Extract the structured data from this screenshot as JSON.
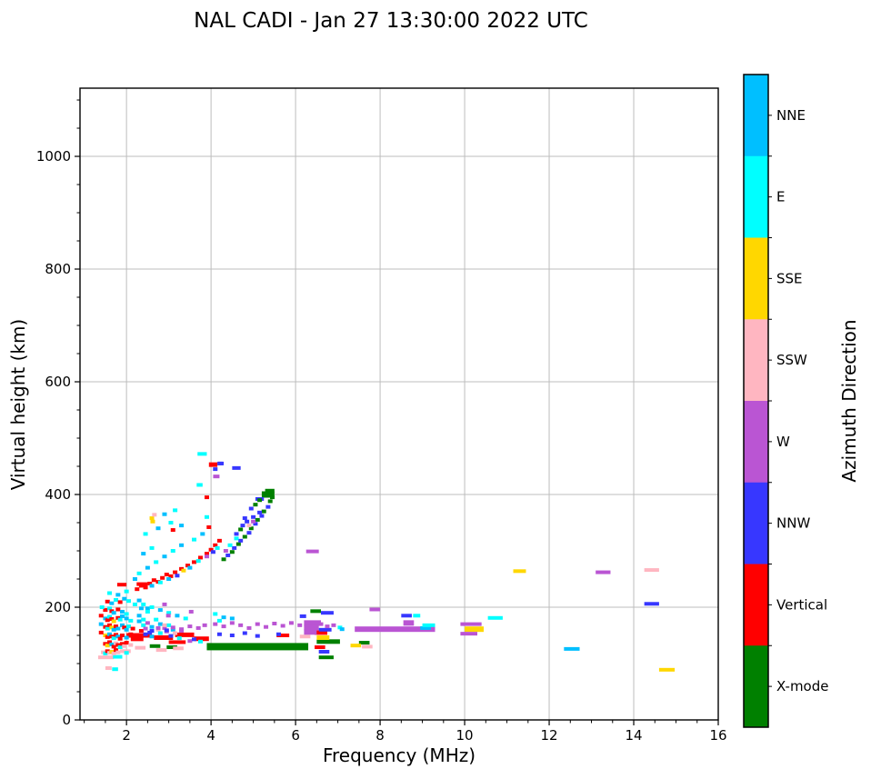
{
  "title": "NAL CADI - Jan 27 13:30:00 2022 UTC",
  "chart_data": {
    "type": "scatter",
    "title": "NAL CADI - Jan 27 13:30:00 2022 UTC",
    "xlabel": "Frequency (MHz)",
    "ylabel": "Virtual height (km)",
    "xlim": [
      0.9,
      16
    ],
    "ylim": [
      0,
      1121
    ],
    "x_major_ticks": [
      2,
      4,
      6,
      8,
      10,
      12,
      14,
      16
    ],
    "x_minor_step": 0.5,
    "y_major_ticks": [
      0,
      200,
      400,
      600,
      800,
      1000
    ],
    "y_minor_step": 50,
    "grid": true,
    "colorbar_label": "Azimuth Direction",
    "legend": [
      {
        "label": "NNE",
        "color": "#00BFFF"
      },
      {
        "label": "E",
        "color": "#00FFFF"
      },
      {
        "label": "SSE",
        "color": "#FFD700"
      },
      {
        "label": "SSW",
        "color": "#FFB6C1"
      },
      {
        "label": "W",
        "color": "#BA55D3"
      },
      {
        "label": "NNW",
        "color": "#3737FF"
      },
      {
        "label": "Vertical",
        "color": "#FF0000"
      },
      {
        "label": "X-mode",
        "color": "#008000"
      }
    ],
    "color_codes": {
      "NNE": "#00BFFF",
      "E": "#00FFFF",
      "SSE": "#FFD700",
      "SSW": "#FFB6C1",
      "W": "#BA55D3",
      "NNW": "#3737FF",
      "V": "#FF0000",
      "X": "#008000"
    },
    "points": [
      [
        1.45,
        120,
        "SSW"
      ],
      [
        1.5,
        118,
        "E"
      ],
      [
        1.55,
        122,
        "V"
      ],
      [
        1.6,
        119,
        "SSW"
      ],
      [
        1.65,
        121,
        "SSE"
      ],
      [
        1.7,
        118,
        "SSW"
      ],
      [
        1.75,
        124,
        "V"
      ],
      [
        1.8,
        120,
        "SSW"
      ],
      [
        1.9,
        122,
        "SSW"
      ],
      [
        2.0,
        119,
        "E"
      ],
      [
        1.5,
        135,
        "V"
      ],
      [
        1.55,
        132,
        "SSE"
      ],
      [
        1.6,
        138,
        "V"
      ],
      [
        1.65,
        134,
        "NNE"
      ],
      [
        1.7,
        130,
        "V"
      ],
      [
        1.75,
        136,
        "SSW"
      ],
      [
        1.8,
        133,
        "V"
      ],
      [
        1.85,
        129,
        "E"
      ],
      [
        1.9,
        135,
        "V"
      ],
      [
        1.95,
        131,
        "SSW"
      ],
      [
        2.0,
        137,
        "V"
      ],
      [
        2.1,
        133,
        "SSW"
      ],
      [
        1.5,
        150,
        "SSE"
      ],
      [
        1.55,
        147,
        "V"
      ],
      [
        1.6,
        152,
        "NNE"
      ],
      [
        1.65,
        148,
        "V"
      ],
      [
        1.7,
        145,
        "E"
      ],
      [
        1.75,
        151,
        "V"
      ],
      [
        1.8,
        148,
        "NNE"
      ],
      [
        1.85,
        144,
        "V"
      ],
      [
        1.9,
        150,
        "V"
      ],
      [
        2.0,
        146,
        "NNE"
      ],
      [
        2.1,
        152,
        "V"
      ],
      [
        2.2,
        148,
        "V"
      ],
      [
        1.5,
        165,
        "V"
      ],
      [
        1.55,
        162,
        "E"
      ],
      [
        1.6,
        168,
        "V"
      ],
      [
        1.65,
        164,
        "SSE"
      ],
      [
        1.7,
        160,
        "NNE"
      ],
      [
        1.75,
        166,
        "V"
      ],
      [
        1.8,
        162,
        "NNE"
      ],
      [
        1.9,
        168,
        "NNE"
      ],
      [
        1.95,
        164,
        "V"
      ],
      [
        2.0,
        160,
        "NNE"
      ],
      [
        2.05,
        166,
        "E"
      ],
      [
        2.15,
        162,
        "V"
      ],
      [
        1.5,
        180,
        "NNE"
      ],
      [
        1.55,
        177,
        "V"
      ],
      [
        1.6,
        183,
        "E"
      ],
      [
        1.65,
        179,
        "V"
      ],
      [
        1.7,
        175,
        "SSE"
      ],
      [
        1.8,
        181,
        "V"
      ],
      [
        1.85,
        178,
        "E"
      ],
      [
        1.9,
        184,
        "NNE"
      ],
      [
        2.0,
        180,
        "NNE"
      ],
      [
        2.1,
        176,
        "E"
      ],
      [
        1.5,
        195,
        "V"
      ],
      [
        1.6,
        198,
        "E"
      ],
      [
        1.65,
        193,
        "V"
      ],
      [
        1.7,
        190,
        "NNE"
      ],
      [
        1.8,
        196,
        "V"
      ],
      [
        1.9,
        192,
        "NNE"
      ],
      [
        2.0,
        188,
        "E"
      ],
      [
        1.55,
        210,
        "V"
      ],
      [
        1.65,
        207,
        "NNE"
      ],
      [
        1.75,
        213,
        "E"
      ],
      [
        1.85,
        209,
        "V"
      ],
      [
        1.95,
        215,
        "NNE"
      ],
      [
        2.05,
        211,
        "E"
      ],
      [
        1.6,
        225,
        "E"
      ],
      [
        1.8,
        222,
        "NNE"
      ],
      [
        2.0,
        228,
        "E"
      ],
      [
        2.3,
        212,
        "NNE"
      ],
      [
        2.4,
        205,
        "E"
      ],
      [
        2.5,
        198,
        "NNE"
      ],
      [
        1.4,
        155,
        "V"
      ],
      [
        1.4,
        170,
        "NNE"
      ],
      [
        1.4,
        185,
        "V"
      ],
      [
        1.42,
        200,
        "E"
      ],
      [
        2.3,
        175,
        "NNE"
      ],
      [
        2.4,
        168,
        "E"
      ],
      [
        2.5,
        172,
        "W"
      ],
      [
        2.6,
        165,
        "NNE"
      ],
      [
        2.7,
        178,
        "E"
      ],
      [
        2.8,
        170,
        "NNE"
      ],
      [
        2.9,
        163,
        "W"
      ],
      [
        3.0,
        168,
        "E"
      ],
      [
        3.1,
        160,
        "NNE"
      ],
      [
        2.35,
        158,
        "V"
      ],
      [
        2.55,
        155,
        "NNW"
      ],
      [
        2.75,
        160,
        "SSW"
      ],
      [
        2.95,
        157,
        "W"
      ],
      [
        3.15,
        154,
        "SSW"
      ],
      [
        2.2,
        205,
        "E"
      ],
      [
        2.35,
        198,
        "NNE"
      ],
      [
        2.5,
        192,
        "E"
      ],
      [
        2.3,
        185,
        "NNE"
      ],
      [
        2.6,
        200,
        "E"
      ],
      [
        2.8,
        195,
        "NNE"
      ],
      [
        3.0,
        190,
        "E"
      ],
      [
        2.4,
        178,
        "E"
      ],
      [
        3.2,
        185,
        "NNE"
      ],
      [
        3.4,
        180,
        "E"
      ],
      [
        2.9,
        205,
        "W"
      ],
      [
        2.99,
        185,
        "W"
      ],
      [
        3.53,
        192,
        "W"
      ],
      [
        2.45,
        162,
        "W"
      ],
      [
        2.6,
        158,
        "NNW"
      ],
      [
        2.75,
        163,
        "W"
      ],
      [
        2.95,
        159,
        "NNW"
      ],
      [
        3.1,
        164,
        "W"
      ],
      [
        3.3,
        161,
        "W"
      ],
      [
        3.5,
        166,
        "W"
      ],
      [
        3.7,
        163,
        "W"
      ],
      [
        3.85,
        168,
        "W"
      ],
      [
        4.1,
        188,
        "E"
      ],
      [
        4.3,
        182,
        "NNE"
      ],
      [
        4.2,
        176,
        "E"
      ],
      [
        4.5,
        180,
        "NNE"
      ],
      [
        2.45,
        152,
        "NNW"
      ],
      [
        2.6,
        148,
        "NNE"
      ],
      [
        2.8,
        154,
        "E"
      ],
      [
        3.05,
        149,
        "NNW"
      ],
      [
        3.25,
        145,
        "E"
      ],
      [
        3.5,
        140,
        "W"
      ],
      [
        3.3,
        158,
        "W"
      ],
      [
        2.9,
        168,
        "SSW"
      ],
      [
        3.6,
        143,
        "NNW"
      ],
      [
        3.75,
        139,
        "E"
      ],
      [
        2.25,
        232,
        "V"
      ],
      [
        2.35,
        238,
        "V"
      ],
      [
        2.45,
        235,
        "V"
      ],
      [
        2.55,
        242,
        "V"
      ],
      [
        2.65,
        248,
        "V"
      ],
      [
        2.75,
        245,
        "V"
      ],
      [
        2.85,
        252,
        "V"
      ],
      [
        2.95,
        258,
        "V"
      ],
      [
        3.05,
        255,
        "V"
      ],
      [
        3.15,
        262,
        "V"
      ],
      [
        3.3,
        268,
        "V"
      ],
      [
        3.45,
        274,
        "V"
      ],
      [
        3.6,
        280,
        "V"
      ],
      [
        3.75,
        288,
        "V"
      ],
      [
        3.9,
        295,
        "V"
      ],
      [
        4.0,
        302,
        "V"
      ],
      [
        4.1,
        310,
        "V"
      ],
      [
        4.2,
        318,
        "V"
      ],
      [
        2.6,
        238,
        "NNE"
      ],
      [
        2.8,
        244,
        "E"
      ],
      [
        3.0,
        250,
        "NNE"
      ],
      [
        3.2,
        256,
        "NNW"
      ],
      [
        3.5,
        270,
        "NNE"
      ],
      [
        3.7,
        282,
        "E"
      ],
      [
        3.9,
        290,
        "W"
      ],
      [
        4.05,
        298,
        "NNW"
      ],
      [
        4.15,
        305,
        "E"
      ],
      [
        3.35,
        265,
        "SSE"
      ],
      [
        3.1,
        337,
        "V"
      ],
      [
        3.95,
        342,
        "V"
      ],
      [
        2.3,
        260,
        "E"
      ],
      [
        2.5,
        270,
        "NNE"
      ],
      [
        2.7,
        280,
        "E"
      ],
      [
        2.9,
        290,
        "NNE"
      ],
      [
        3.1,
        300,
        "E"
      ],
      [
        3.3,
        310,
        "NNE"
      ],
      [
        2.4,
        295,
        "NNE"
      ],
      [
        2.6,
        305,
        "E"
      ],
      [
        2.2,
        250,
        "NNE"
      ],
      [
        3.6,
        320,
        "E"
      ],
      [
        3.8,
        330,
        "NNE"
      ],
      [
        2.45,
        330,
        "E"
      ],
      [
        2.75,
        340,
        "NNE"
      ],
      [
        3.05,
        350,
        "E"
      ],
      [
        2.6,
        358,
        "SSE"
      ],
      [
        2.62,
        352,
        "SSE"
      ],
      [
        2.66,
        364,
        "SSW"
      ],
      [
        3.9,
        360,
        "E"
      ],
      [
        3.3,
        345,
        "NNE"
      ],
      [
        2.9,
        365,
        "NNE"
      ],
      [
        3.15,
        372,
        "E"
      ],
      [
        4.3,
        285,
        "X"
      ],
      [
        4.4,
        292,
        "NNW"
      ],
      [
        4.5,
        298,
        "X"
      ],
      [
        4.55,
        305,
        "NNW"
      ],
      [
        4.65,
        312,
        "X"
      ],
      [
        4.7,
        318,
        "NNW"
      ],
      [
        4.8,
        325,
        "X"
      ],
      [
        4.9,
        332,
        "NNW"
      ],
      [
        4.95,
        340,
        "X"
      ],
      [
        5.05,
        348,
        "NNW"
      ],
      [
        5.1,
        355,
        "X"
      ],
      [
        5.2,
        362,
        "NNW"
      ],
      [
        5.25,
        370,
        "X"
      ],
      [
        5.35,
        378,
        "NNW"
      ],
      [
        5.45,
        395,
        "X"
      ],
      [
        5.4,
        388,
        "X"
      ],
      [
        4.6,
        330,
        "NNW"
      ],
      [
        4.75,
        345,
        "NNW"
      ],
      [
        4.85,
        352,
        "NNW"
      ],
      [
        5.0,
        360,
        "NNW"
      ],
      [
        5.15,
        368,
        "NNW"
      ],
      [
        4.45,
        310,
        "E"
      ],
      [
        4.6,
        322,
        "E"
      ],
      [
        4.9,
        345,
        "SSW"
      ],
      [
        5.0,
        352,
        "W"
      ],
      [
        4.35,
        300,
        "W"
      ],
      [
        4.7,
        338,
        "X"
      ],
      [
        4.8,
        358,
        "NNW"
      ],
      [
        4.95,
        375,
        "NNW"
      ],
      [
        5.05,
        382,
        "X"
      ],
      [
        5.15,
        390,
        "X"
      ],
      [
        4.22,
        455,
        "NNW"
      ],
      [
        4.1,
        445,
        "NNW"
      ],
      [
        3.9,
        395,
        "V"
      ],
      [
        4.1,
        170,
        "W"
      ],
      [
        4.3,
        166,
        "W"
      ],
      [
        4.5,
        172,
        "W"
      ],
      [
        4.7,
        168,
        "W"
      ],
      [
        4.9,
        163,
        "W"
      ],
      [
        5.1,
        170,
        "W"
      ],
      [
        5.3,
        165,
        "W"
      ],
      [
        5.5,
        171,
        "W"
      ],
      [
        5.7,
        167,
        "W"
      ],
      [
        5.9,
        172,
        "W"
      ],
      [
        6.1,
        168,
        "W"
      ],
      [
        6.6,
        170,
        "W"
      ],
      [
        6.75,
        166,
        "W"
      ],
      [
        6.9,
        168,
        "W"
      ],
      [
        4.2,
        152,
        "NNW"
      ],
      [
        4.5,
        150,
        "NNW"
      ],
      [
        4.8,
        154,
        "NNW"
      ],
      [
        5.1,
        149,
        "NNW"
      ],
      [
        5.6,
        152,
        "NNW"
      ],
      [
        7.05,
        164,
        "E"
      ],
      [
        7.1,
        161,
        "NNE"
      ]
    ],
    "segments": [
      [
        2.0,
        2.6,
        150,
        "V",
        5
      ],
      [
        2.65,
        3.1,
        146,
        "V",
        5
      ],
      [
        3.15,
        3.6,
        151,
        "V",
        5
      ],
      [
        3.6,
        3.95,
        144,
        "V",
        5
      ],
      [
        2.1,
        2.4,
        143,
        "V"
      ],
      [
        3.0,
        3.4,
        138,
        "V"
      ],
      [
        4.0,
        4.5,
        131,
        "V",
        5
      ],
      [
        5.55,
        5.85,
        150,
        "V"
      ],
      [
        6.45,
        6.75,
        155,
        "V",
        5
      ],
      [
        6.45,
        6.7,
        129,
        "V"
      ],
      [
        1.78,
        2.0,
        240,
        "V"
      ],
      [
        2.24,
        2.5,
        241,
        "V"
      ],
      [
        3.95,
        4.15,
        453,
        "V",
        5
      ],
      [
        2.55,
        2.8,
        131,
        "X"
      ],
      [
        2.95,
        3.2,
        129,
        "X"
      ],
      [
        3.9,
        6.3,
        130,
        "X",
        8
      ],
      [
        6.5,
        7.05,
        139,
        "X",
        5
      ],
      [
        7.5,
        7.75,
        137,
        "X"
      ],
      [
        6.35,
        6.6,
        193,
        "X"
      ],
      [
        6.55,
        6.9,
        111,
        "X"
      ],
      [
        5.2,
        5.5,
        400,
        "X",
        7
      ],
      [
        5.28,
        5.5,
        406,
        "X",
        5
      ],
      [
        2.2,
        2.45,
        128,
        "SSW"
      ],
      [
        2.7,
        2.95,
        124,
        "SSW"
      ],
      [
        3.1,
        3.35,
        127,
        "SSW"
      ],
      [
        1.9,
        2.1,
        122,
        "SSW"
      ],
      [
        1.33,
        1.7,
        111,
        "SSW"
      ],
      [
        1.68,
        1.9,
        112,
        "E"
      ],
      [
        1.5,
        1.65,
        92,
        "SSW"
      ],
      [
        1.66,
        1.8,
        90,
        "E"
      ],
      [
        6.1,
        6.35,
        148,
        "SSW"
      ],
      [
        7.57,
        7.82,
        130,
        "SSW"
      ],
      [
        14.25,
        14.6,
        266,
        "SSW"
      ],
      [
        6.5,
        6.8,
        146,
        "SSE",
        5
      ],
      [
        7.3,
        7.55,
        132,
        "SSE"
      ],
      [
        10.0,
        10.45,
        161,
        "SSE",
        6
      ],
      [
        11.15,
        11.45,
        264,
        "SSE"
      ],
      [
        14.6,
        14.97,
        89,
        "SSE"
      ],
      [
        6.2,
        6.6,
        172,
        "W",
        6
      ],
      [
        6.2,
        6.55,
        164,
        "W",
        6
      ],
      [
        6.2,
        6.5,
        156,
        "W",
        6
      ],
      [
        7.75,
        8.0,
        196,
        "W"
      ],
      [
        7.4,
        9.3,
        161,
        "W",
        6
      ],
      [
        8.55,
        8.8,
        172,
        "W",
        6
      ],
      [
        9.9,
        10.4,
        170,
        "W"
      ],
      [
        9.9,
        10.3,
        153,
        "W"
      ],
      [
        6.25,
        6.55,
        299,
        "W"
      ],
      [
        13.1,
        13.45,
        262,
        "W"
      ],
      [
        4.05,
        4.2,
        432,
        "W"
      ],
      [
        6.6,
        6.9,
        190,
        "NNW"
      ],
      [
        6.1,
        6.25,
        184,
        "NNW"
      ],
      [
        6.55,
        6.85,
        160,
        "NNW"
      ],
      [
        6.55,
        6.8,
        121,
        "NNW"
      ],
      [
        8.5,
        8.75,
        185,
        "NNW"
      ],
      [
        14.25,
        14.6,
        206,
        "NNW"
      ],
      [
        4.5,
        4.7,
        447,
        "NNW"
      ],
      [
        5.05,
        5.25,
        392,
        "NNW"
      ],
      [
        4.15,
        4.3,
        455,
        "NNW"
      ],
      [
        8.95,
        9.2,
        163,
        "NNE"
      ],
      [
        8.78,
        8.95,
        185,
        "E"
      ],
      [
        9.0,
        9.3,
        168,
        "E"
      ],
      [
        10.55,
        10.9,
        181,
        "E"
      ],
      [
        12.35,
        12.72,
        126,
        "NNE"
      ],
      [
        3.68,
        3.9,
        472,
        "E"
      ],
      [
        3.66,
        3.8,
        417,
        "E"
      ]
    ]
  }
}
